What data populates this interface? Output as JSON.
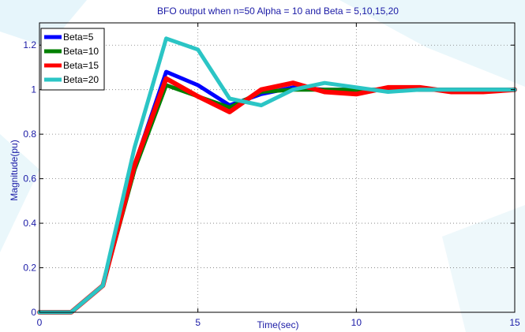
{
  "chart_data": {
    "type": "line",
    "title": "BFO output when n=50 Alpha = 10 and Beta = 5,10,15,20",
    "xlabel": "Time(sec)",
    "ylabel": "Magnitude(pu)",
    "xlim": [
      0,
      15
    ],
    "ylim": [
      0,
      1.3
    ],
    "xticks": [
      0,
      5,
      10,
      15
    ],
    "yticks": [
      0,
      0.2,
      0.4,
      0.6,
      0.8,
      1,
      1.2
    ],
    "xtick_labels": [
      "0",
      "5",
      "10",
      "15"
    ],
    "ytick_labels": [
      "0",
      "0.2",
      "0.4",
      "0.6",
      "0.8",
      "1",
      "1.2"
    ],
    "grid": "dotted",
    "legend_position": "top-left",
    "x": [
      0,
      1,
      2,
      3,
      4,
      5,
      6,
      7,
      8,
      9,
      10,
      11,
      12,
      13,
      14,
      15
    ],
    "series": [
      {
        "name": "Beta=5",
        "color": "#0000ff",
        "values": [
          0,
          0,
          0.12,
          0.66,
          1.08,
          1.02,
          0.93,
          0.98,
          1.01,
          1.0,
          1.0,
          1.0,
          1.0,
          1.0,
          1.0,
          1.0
        ]
      },
      {
        "name": "Beta=10",
        "color": "#007f00",
        "values": [
          0,
          0,
          0.12,
          0.64,
          1.02,
          0.97,
          0.92,
          0.99,
          1.0,
          1.0,
          1.0,
          1.0,
          1.0,
          1.0,
          1.0,
          1.0
        ]
      },
      {
        "name": "Beta=15",
        "color": "#ff0000",
        "values": [
          0,
          0,
          0.12,
          0.66,
          1.05,
          0.97,
          0.9,
          1.0,
          1.03,
          0.99,
          0.98,
          1.01,
          1.01,
          0.99,
          0.99,
          1.0
        ]
      },
      {
        "name": "Beta=20",
        "color": "#2bc5c5",
        "values": [
          0,
          0,
          0.12,
          0.74,
          1.23,
          1.18,
          0.96,
          0.93,
          1.0,
          1.03,
          1.01,
          0.99,
          1.0,
          1.0,
          1.0,
          1.0
        ]
      }
    ]
  }
}
